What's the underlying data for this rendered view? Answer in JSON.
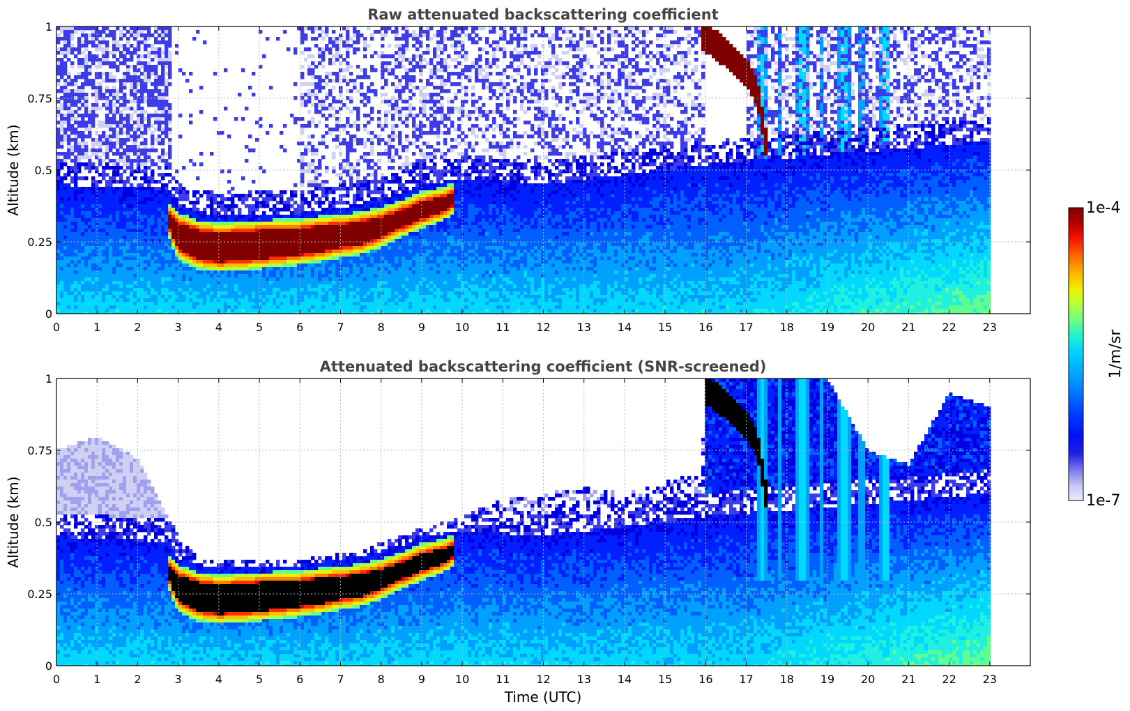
{
  "chart_data": [
    {
      "type": "heatmap",
      "title": "Raw attenuated backscattering coefficient",
      "xlabel": "",
      "ylabel": "Altitude (km)",
      "xlim": [
        0,
        24
      ],
      "ylim": [
        0,
        1
      ],
      "x_ticks": [
        "0",
        "1",
        "2",
        "3",
        "4",
        "5",
        "6",
        "7",
        "8",
        "9",
        "10",
        "11",
        "12",
        "13",
        "14",
        "15",
        "16",
        "17",
        "18",
        "19",
        "20",
        "21",
        "22",
        "23"
      ],
      "y_ticks": [
        "0",
        "0.25",
        "0.5",
        "0.75",
        "1"
      ],
      "grid": true,
      "data_end_time": 22.95,
      "layers": [
        {
          "name": "boundary layer",
          "time": [
            0,
            2.8,
            3.0,
            4.0,
            6.0,
            7.5,
            8.5,
            9.0,
            10.0,
            12.0,
            16.0,
            23.0
          ],
          "top": [
            0.45,
            0.43,
            0.37,
            0.34,
            0.35,
            0.38,
            0.42,
            0.45,
            0.47,
            0.45,
            0.52,
            0.6
          ]
        },
        {
          "name": "aerosol layer",
          "time": [
            2.75,
            3.0,
            3.5,
            4.0,
            5.0,
            6.0,
            6.5,
            7.0,
            7.5,
            8.0,
            8.5,
            9.0,
            9.5,
            9.8
          ],
          "center": [
            0.33,
            0.27,
            0.24,
            0.23,
            0.24,
            0.25,
            0.26,
            0.27,
            0.28,
            0.3,
            0.33,
            0.36,
            0.38,
            0.4
          ],
          "thickness": [
            0.05,
            0.09,
            0.1,
            0.1,
            0.1,
            0.09,
            0.09,
            0.08,
            0.08,
            0.07,
            0.06,
            0.06,
            0.05,
            0.04
          ]
        },
        {
          "name": "descending cloud",
          "time": [
            15.9,
            16.3,
            16.8,
            17.1,
            17.3,
            17.5
          ],
          "center": [
            0.97,
            0.93,
            0.87,
            0.82,
            0.75,
            0.58
          ]
        }
      ]
    },
    {
      "type": "heatmap",
      "title": "Attenuated backscattering coefficient (SNR-screened)",
      "xlabel": "Time (UTC)",
      "ylabel": "Altitude (km)",
      "xlim": [
        0,
        24
      ],
      "ylim": [
        0,
        1
      ],
      "x_ticks": [
        "0",
        "1",
        "2",
        "3",
        "4",
        "5",
        "6",
        "7",
        "8",
        "9",
        "10",
        "11",
        "12",
        "13",
        "14",
        "15",
        "16",
        "17",
        "18",
        "19",
        "20",
        "21",
        "22",
        "23"
      ],
      "y_ticks": [
        "0",
        "0.25",
        "0.5",
        "0.75",
        "1"
      ],
      "grid": true,
      "data_end_time": 22.95,
      "screened_top": {
        "time": [
          0,
          1,
          2,
          2.8,
          3.5,
          6,
          7.5,
          9,
          10,
          11,
          12,
          13,
          14,
          15,
          15.9,
          16,
          17,
          19,
          20,
          21,
          22,
          23
        ],
        "top": [
          0.75,
          0.8,
          0.72,
          0.5,
          0.37,
          0.37,
          0.4,
          0.48,
          0.52,
          0.58,
          0.6,
          0.62,
          0.6,
          0.64,
          0.68,
          1.0,
          1.0,
          1.0,
          0.75,
          0.7,
          0.95,
          0.9
        ]
      }
    }
  ],
  "colorbar": {
    "label": "1/m/sr",
    "max_label": "1e-4",
    "min_label": "1e-7",
    "scale": "log",
    "range": [
      1e-07,
      0.0001
    ],
    "colormap": [
      "#ececfa",
      "#d0d0f5",
      "#a0a0ee",
      "#6f6fea",
      "#3c3ce8",
      "#0000e0",
      "#0020ff",
      "#0060ff",
      "#00a0ff",
      "#00d8ff",
      "#20f0e0",
      "#60ff90",
      "#b0ff40",
      "#f0f000",
      "#ffc000",
      "#ff8000",
      "#ff3000",
      "#e00000",
      "#a00000",
      "#800000"
    ]
  }
}
